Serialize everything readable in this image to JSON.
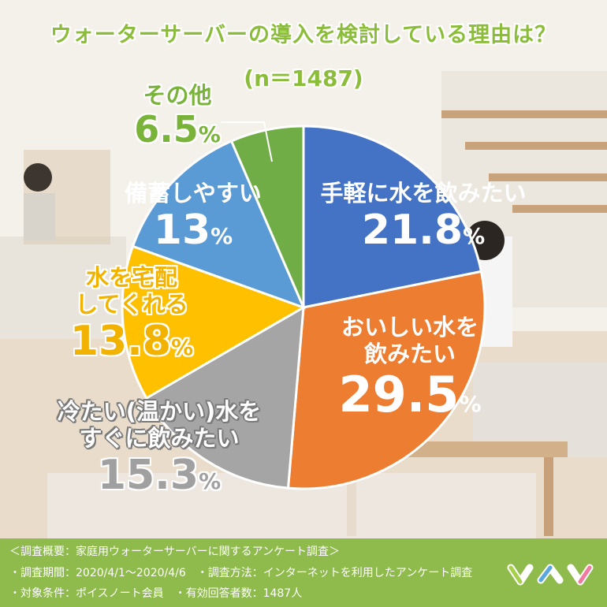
{
  "title": "ウォーターサーバーの導入を検討している理由は？",
  "subtitle": "(n＝1487)",
  "chart_data": {
    "type": "pie",
    "title": "ウォーターサーバーの導入を検討している理由は？",
    "n": 1487,
    "slices": [
      {
        "label": "手軽に水を飲みたい",
        "value": 21.8,
        "color": "#4472c4"
      },
      {
        "label": "おいしい水を飲みたい",
        "value": 29.5,
        "color": "#ed7d31"
      },
      {
        "label": "冷たい（温かい）水をすぐに飲みたい",
        "value": 15.3,
        "color": "#a5a5a5"
      },
      {
        "label": "水を宅配してくれる",
        "value": 13.8,
        "color": "#ffc000"
      },
      {
        "label": "備蓄しやすい",
        "value": 13,
        "color": "#5b9bd5"
      },
      {
        "label": "その他",
        "value": 6.5,
        "color": "#70ad47"
      }
    ]
  },
  "labels": {
    "s0": {
      "line1": "手軽に水を飲みたい",
      "pct": "21.8",
      "unit": "%"
    },
    "s1": {
      "line1": "おいしい水を",
      "line2": "飲みたい",
      "pct": "29.5",
      "unit": "%"
    },
    "s2": {
      "line1": "冷たい(温かい)水を",
      "line2": "すぐに飲みたい",
      "pct": "15.3",
      "unit": "%"
    },
    "s3": {
      "line1": "水を宅配",
      "line2": "してくれる",
      "pct": "13.8",
      "unit": "%"
    },
    "s4": {
      "line1": "備蓄しやすい",
      "pct": "13",
      "unit": "%"
    },
    "s5": {
      "line1": "その他",
      "pct": "6.5",
      "unit": "%"
    }
  },
  "footer": {
    "line1": "＜調査概要：家庭用ウォーターサーバーに関するアンケート調査＞",
    "line2": "・調査期間：2020/4/1～2020/4/6　・調査方法：インターネットを利用したアンケート調査",
    "line3": "・対象条件：ポイスノート会員　・有効回答者数：1487人"
  },
  "colors": {
    "footer_bg": "#8fba4c",
    "title": "#8cbd3a"
  }
}
